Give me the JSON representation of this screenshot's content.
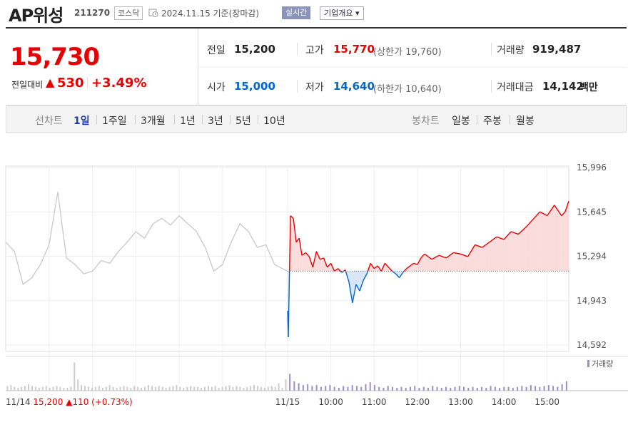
{
  "stock": {
    "name": "AP위성",
    "code": "211270",
    "market": "코스닥",
    "date_text": "2024.11.15 기준(장마감)",
    "realtime_label": "실시간",
    "company_label": "기업개요 ▾"
  },
  "price": {
    "current": "15,730",
    "compare_label": "전일대비",
    "change_arrow": "▲",
    "change": "530",
    "change_pct": "+3.49%"
  },
  "summary": {
    "prev_label": "전일",
    "prev": "15,200",
    "high_label": "고가",
    "high": "15,770",
    "upper_limit": "(상한가 19,760)",
    "volume_label": "거래량",
    "volume": "919,487",
    "open_label": "시가",
    "open": "15,000",
    "low_label": "저가",
    "low": "14,640",
    "lower_limit": "(하한가 10,640)",
    "amount_label": "거래대금",
    "amount": "14,142",
    "amount_unit": "백만"
  },
  "tabs": {
    "line_label": "선차트",
    "line_items": [
      "1일",
      "1주일",
      "3개월",
      "1년",
      "3년",
      "5년",
      "10년"
    ],
    "candle_label": "봉차트",
    "candle_items": [
      "일봉",
      "주봉",
      "월봉"
    ]
  },
  "colors": {
    "up": "#e60000",
    "down": "#0066cc",
    "prev_day": "#c8c8c8",
    "up_fill": "#fbdcdc",
    "down_fill": "#d9e6f7",
    "volume_today": "#9b8ec7"
  },
  "chart_data": {
    "type": "line",
    "y_ticks": [
      "15,996",
      "15,645",
      "15,294",
      "14,943",
      "14,592"
    ],
    "ylim": [
      14592,
      15996
    ],
    "baseline": 15200,
    "x_ticks": [
      "11/15",
      "10:00",
      "11:00",
      "12:00",
      "13:00",
      "14:00",
      "15:00"
    ],
    "prev_day_label": "11/14",
    "prev_day_close": "15,200",
    "prev_day_arrow": "▲",
    "prev_day_change": "110",
    "prev_day_pct": "(+0.73%)",
    "volume_legend": "거래량",
    "series": [
      {
        "name": "11/14",
        "x": [
          "09:00",
          "09:12",
          "09:24",
          "09:36",
          "09:48",
          "10:00",
          "10:12",
          "10:24",
          "10:36",
          "10:48",
          "11:00",
          "11:12",
          "11:24",
          "11:36",
          "11:48",
          "12:00",
          "12:12",
          "12:24",
          "12:36",
          "12:48",
          "13:00",
          "13:12",
          "13:24",
          "13:36",
          "13:48",
          "14:00",
          "14:12",
          "14:24",
          "14:36",
          "14:48",
          "15:00",
          "15:12",
          "15:30"
        ],
        "values": [
          15420,
          15350,
          15100,
          15150,
          15250,
          15400,
          15800,
          15300,
          15250,
          15180,
          15200,
          15280,
          15260,
          15350,
          15420,
          15500,
          15450,
          15560,
          15600,
          15550,
          15620,
          15560,
          15500,
          15380,
          15200,
          15250,
          15420,
          15560,
          15500,
          15380,
          15400,
          15250,
          15200
        ]
      },
      {
        "name": "11/15",
        "x": [
          "09:00",
          "09:01",
          "09:04",
          "09:08",
          "09:12",
          "09:16",
          "09:20",
          "09:25",
          "09:30",
          "09:35",
          "09:40",
          "09:45",
          "09:50",
          "09:55",
          "10:00",
          "10:05",
          "10:10",
          "10:15",
          "10:20",
          "10:25",
          "10:30",
          "10:35",
          "10:40",
          "10:45",
          "10:50",
          "10:55",
          "11:00",
          "11:05",
          "11:10",
          "11:15",
          "11:20",
          "11:25",
          "11:30",
          "11:35",
          "11:40",
          "11:45",
          "11:50",
          "11:55",
          "12:00",
          "12:05",
          "12:10",
          "12:15",
          "12:20",
          "12:30",
          "12:40",
          "12:50",
          "13:00",
          "13:10",
          "13:20",
          "13:30",
          "13:40",
          "13:50",
          "14:00",
          "14:10",
          "14:20",
          "14:30",
          "14:40",
          "14:50",
          "15:00",
          "15:10",
          "15:20",
          "15:25",
          "15:30"
        ],
        "values": [
          14900,
          14700,
          15620,
          15600,
          15420,
          15450,
          15320,
          15340,
          15310,
          15230,
          15350,
          15290,
          15300,
          15230,
          15260,
          15200,
          15220,
          15190,
          15210,
          15120,
          14960,
          15100,
          15050,
          15130,
          15180,
          15260,
          15220,
          15240,
          15200,
          15260,
          15230,
          15200,
          15180,
          15150,
          15190,
          15220,
          15240,
          15260,
          15250,
          15300,
          15330,
          15310,
          15290,
          15320,
          15300,
          15340,
          15330,
          15310,
          15400,
          15380,
          15420,
          15460,
          15440,
          15500,
          15480,
          15530,
          15590,
          15650,
          15620,
          15700,
          15620,
          15650,
          15730
        ]
      }
    ],
    "volume": {
      "prev_day": [
        5,
        6,
        4,
        3,
        4,
        5,
        7,
        5,
        4,
        3,
        4,
        5,
        3,
        4,
        5,
        4,
        3,
        3,
        4,
        30,
        12,
        6,
        5,
        4,
        3,
        4,
        5,
        3,
        4,
        6,
        4,
        3,
        4,
        5,
        4,
        3,
        5,
        4,
        3,
        4,
        6,
        5,
        4,
        5,
        4,
        3,
        4,
        5,
        6,
        4,
        3,
        4,
        5,
        4,
        4,
        3,
        4,
        5,
        4,
        5,
        3,
        4,
        5,
        6,
        4,
        5,
        4,
        3,
        4,
        5,
        6,
        5,
        4,
        3,
        4,
        5,
        4,
        8,
        3,
        12
      ],
      "today": [
        18,
        10,
        8,
        6,
        7,
        5,
        6,
        4,
        5,
        6,
        4,
        3,
        5,
        4,
        6,
        5,
        4,
        7,
        9,
        6,
        4,
        3,
        5,
        4,
        3,
        4,
        3,
        4,
        5,
        3,
        4,
        3,
        5,
        4,
        3,
        4,
        3,
        4,
        5,
        4,
        3,
        4,
        3,
        4,
        3,
        5,
        4,
        3,
        4,
        4,
        3,
        4,
        5,
        4,
        6,
        5,
        4,
        5,
        6,
        5,
        4,
        7,
        10
      ]
    }
  }
}
